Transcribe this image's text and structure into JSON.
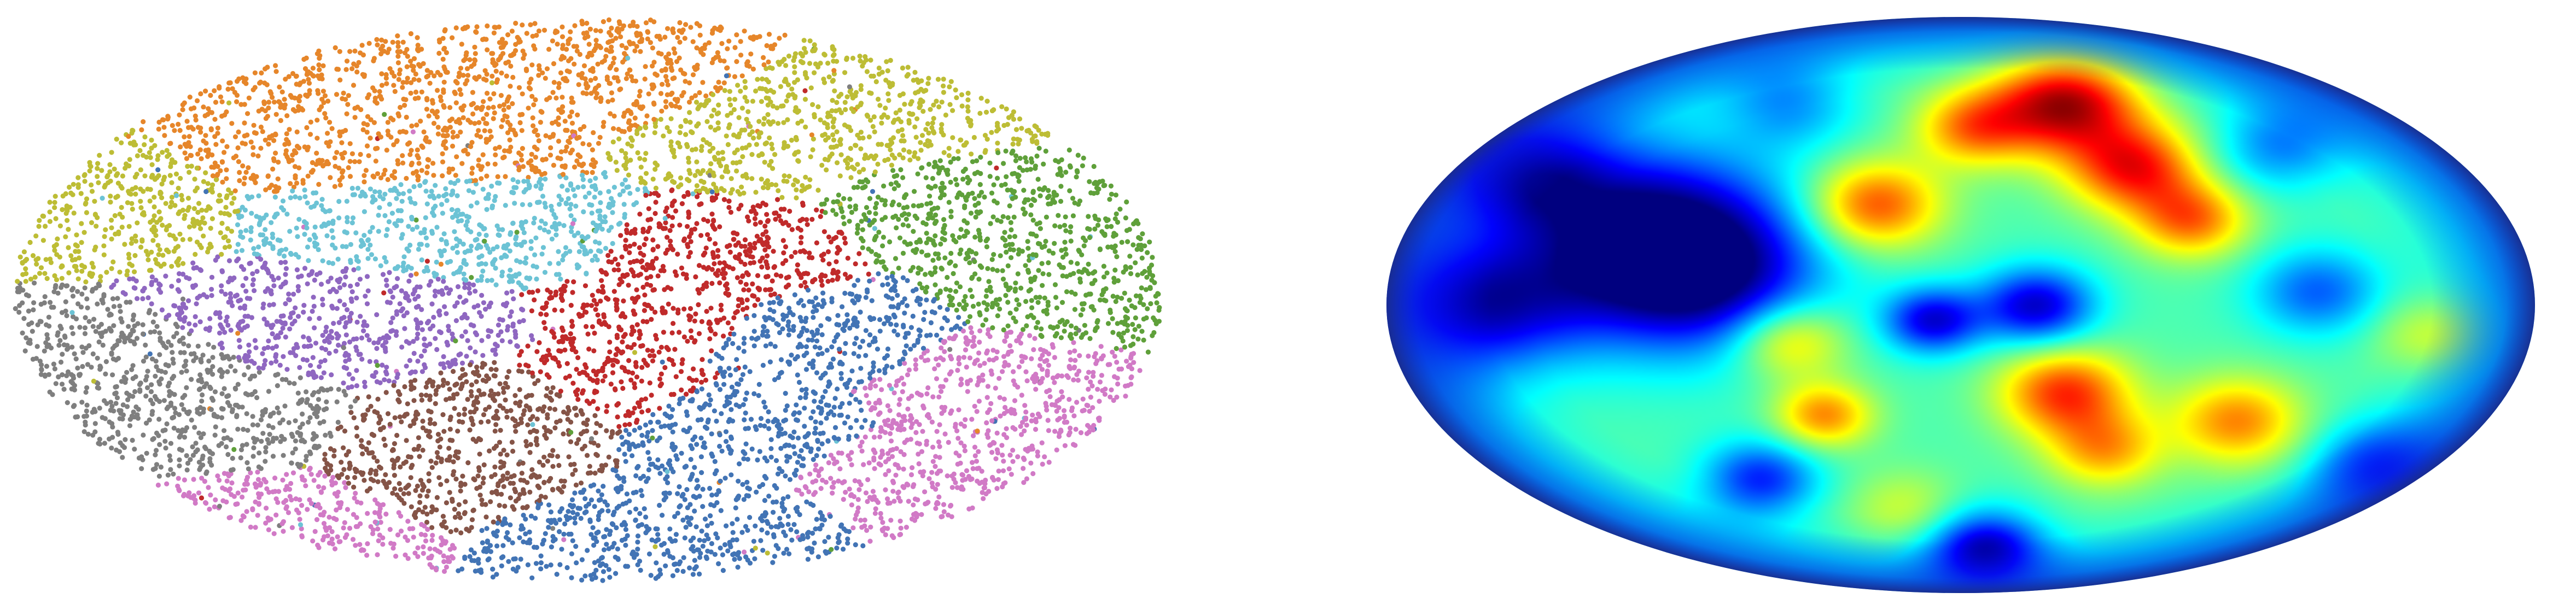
{
  "figure": {
    "panels": [
      {
        "kind": "scatter-sky-map",
        "projection": "mollweide",
        "point_count": 9000,
        "clusters": [
          {
            "name": "orange",
            "color": "#e6862a"
          },
          {
            "name": "olive",
            "color": "#bdbd35"
          },
          {
            "name": "green",
            "color": "#5fa03a"
          },
          {
            "name": "cyan",
            "color": "#6cc3d5"
          },
          {
            "name": "purple",
            "color": "#8f67c1"
          },
          {
            "name": "gray",
            "color": "#7f7f7f"
          },
          {
            "name": "red",
            "color": "#c02a2a"
          },
          {
            "name": "brown",
            "color": "#855447"
          },
          {
            "name": "blue",
            "color": "#4274b5"
          },
          {
            "name": "pink",
            "color": "#d17ac6"
          }
        ]
      },
      {
        "kind": "heatmap-sky-map",
        "projection": "mollweide",
        "colormap": "jet",
        "colormap_stops": [
          "#00007f",
          "#0000ff",
          "#0080ff",
          "#00ffff",
          "#7fff7f",
          "#ffff00",
          "#ff8000",
          "#ff0000",
          "#7f0000"
        ]
      }
    ]
  }
}
